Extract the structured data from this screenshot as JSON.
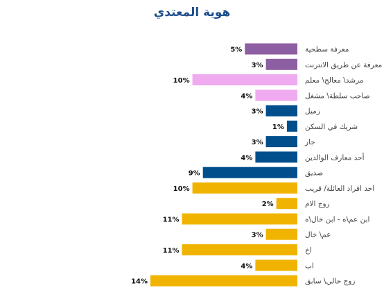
{
  "chart_data": {
    "type": "bar",
    "orientation": "horizontal",
    "title": "هوية المعتدي",
    "xlabel": "",
    "ylabel": "",
    "xlim": [
      0,
      14
    ],
    "grid": false,
    "legend": "none",
    "value_suffix": "%",
    "categories": [
      "معرفة سطحية",
      "معرفة عن طريق الانترنت",
      "مرشد\\ معالج\\ معلم",
      "صاحب سلطة\\ مشغل",
      "زميل",
      "شريك في السكن",
      "جار",
      "أحد معارف الوالدين",
      "صديق",
      "احد افراد العائلة/ قريب",
      "زوج الام",
      "ابن عم\\ه - ابن خال\\ه",
      "عم\\ خال",
      "اخ",
      "اب",
      "زوج حالي\\ سابق"
    ],
    "values": [
      5,
      3,
      10,
      4,
      3,
      1,
      3,
      4,
      9,
      10,
      2,
      11,
      3,
      11,
      4,
      14
    ],
    "bar_colors": [
      "#8e5ea2",
      "#8e5ea2",
      "#f0aaf0",
      "#f0aaf0",
      "#004f8c",
      "#004f8c",
      "#004f8c",
      "#004f8c",
      "#004f8c",
      "#f0b400",
      "#f0b400",
      "#f0b400",
      "#f0b400",
      "#f0b400",
      "#f0b400",
      "#f0b400"
    ]
  }
}
